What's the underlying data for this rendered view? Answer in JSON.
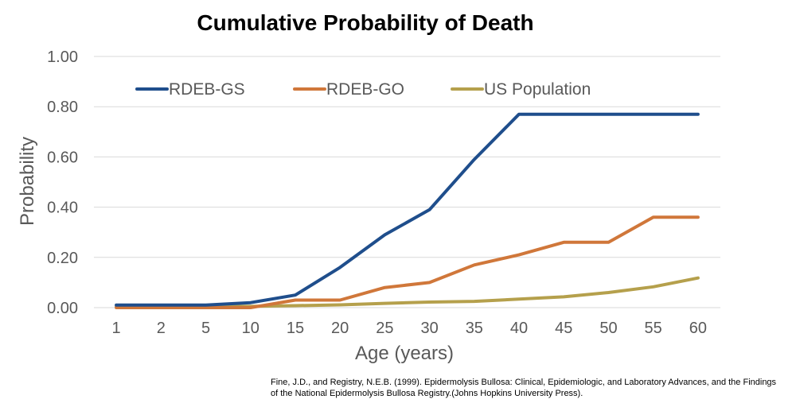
{
  "chart_data": {
    "type": "line",
    "title": "Cumulative Probability of Death",
    "xlabel": "Age (years)",
    "ylabel": "Probability",
    "categories": [
      "1",
      "2",
      "5",
      "10",
      "15",
      "20",
      "25",
      "30",
      "35",
      "40",
      "45",
      "50",
      "55",
      "60"
    ],
    "ylim": [
      0,
      1
    ],
    "yticks": [
      "0.00",
      "0.20",
      "0.40",
      "0.60",
      "0.80",
      "1.00"
    ],
    "ytick_values": [
      0,
      0.2,
      0.4,
      0.6,
      0.8,
      1.0
    ],
    "grid": true,
    "legend_position": "top",
    "series": [
      {
        "name": "RDEB-GS",
        "color": "#1f4e8c",
        "values": [
          0.01,
          0.01,
          0.01,
          0.02,
          0.05,
          0.16,
          0.29,
          0.39,
          0.59,
          0.77,
          0.77,
          0.77,
          0.77,
          0.77
        ]
      },
      {
        "name": "RDEB-GO",
        "color": "#d0773a",
        "values": [
          0.0,
          0.0,
          0.0,
          0.0,
          0.03,
          0.03,
          0.08,
          0.1,
          0.17,
          0.21,
          0.26,
          0.26,
          0.36,
          0.36
        ]
      },
      {
        "name": "US Population",
        "color": "#b5a04c",
        "values": [
          0.005,
          0.005,
          0.005,
          0.005,
          0.008,
          0.011,
          0.017,
          0.022,
          0.025,
          0.034,
          0.043,
          0.06,
          0.083,
          0.118
        ]
      }
    ]
  },
  "citation": "Fine, J.D., and Registry, N.E.B. (1999). Epidermolysis Bullosa: Clinical, Epidemiologic, and Laboratory Advances, and the Findings of the National Epidermolysis Bullosa Registry.(Johns Hopkins University Press)."
}
